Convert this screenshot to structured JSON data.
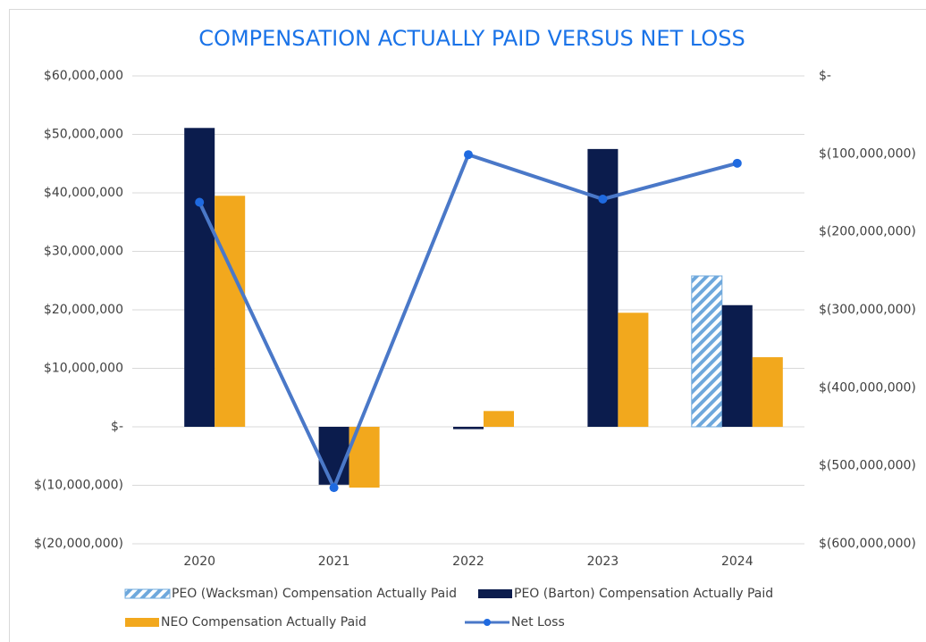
{
  "chart_data": {
    "type": "bar",
    "title": "COMPENSATION ACTUALLY PAID VERSUS NET LOSS",
    "categories": [
      "2020",
      "2021",
      "2022",
      "2023",
      "2024"
    ],
    "series": [
      {
        "name": "PEO (Wacksman) Compensation Actually Paid",
        "color": "#6ea8dc",
        "hatch": true,
        "values": [
          null,
          null,
          null,
          null,
          25800000
        ]
      },
      {
        "name": "PEO (Barton) Compensation Actually Paid",
        "color": "#0b1c4d",
        "values": [
          51100000,
          -9900000,
          -400000,
          47500000,
          20800000
        ]
      },
      {
        "name": "NEO Compensation Actually Paid",
        "color": "#f2a81d",
        "values": [
          39500000,
          -10400000,
          2700000,
          19500000,
          11900000
        ]
      },
      {
        "name": "Net Loss",
        "type": "line",
        "axis": "y2",
        "color": "#4a78c8",
        "marker_color": "#1f6ae0",
        "values": [
          -162000000,
          -528000000,
          -101000000,
          -158000000,
          -112000000
        ]
      }
    ],
    "ylim": [
      -20000000,
      60000000
    ],
    "yticks": [
      {
        "value": -20000000,
        "label": "$(20,000,000)"
      },
      {
        "value": -10000000,
        "label": "$(10,000,000)"
      },
      {
        "value": 0,
        "label": "$-"
      },
      {
        "value": 10000000,
        "label": "$10,000,000"
      },
      {
        "value": 20000000,
        "label": "$20,000,000"
      },
      {
        "value": 30000000,
        "label": "$30,000,000"
      },
      {
        "value": 40000000,
        "label": "$40,000,000"
      },
      {
        "value": 50000000,
        "label": "$50,000,000"
      },
      {
        "value": 60000000,
        "label": "$60,000,000"
      }
    ],
    "y2lim": [
      -600000000,
      0
    ],
    "y2ticks": [
      {
        "value": -600000000,
        "label": "$(600,000,000)"
      },
      {
        "value": -500000000,
        "label": "$(500,000,000)"
      },
      {
        "value": -400000000,
        "label": "$(400,000,000)"
      },
      {
        "value": -300000000,
        "label": "$(300,000,000)"
      },
      {
        "value": -200000000,
        "label": "$(200,000,000)"
      },
      {
        "value": -100000000,
        "label": "$(100,000,000)"
      },
      {
        "value": 0,
        "label": "$-"
      }
    ],
    "grid": true,
    "legend": "bottom"
  }
}
